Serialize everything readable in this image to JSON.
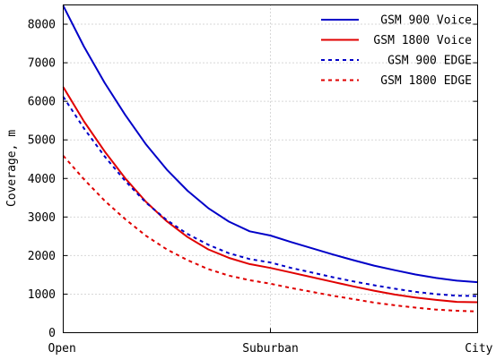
{
  "chart_data": {
    "type": "line",
    "xlabel": "",
    "ylabel": "Coverage, m",
    "categories": [
      "Open",
      "Suburban",
      "City"
    ],
    "xlim": [
      0,
      2
    ],
    "ylim": [
      0,
      8500
    ],
    "yticks": [
      0,
      1000,
      2000,
      3000,
      4000,
      5000,
      6000,
      7000,
      8000
    ],
    "grid": true,
    "legend_position": "top-right",
    "x": [
      0,
      0.1,
      0.2,
      0.3,
      0.4,
      0.5,
      0.6,
      0.7,
      0.8,
      0.9,
      1.0,
      1.1,
      1.2,
      1.3,
      1.4,
      1.5,
      1.6,
      1.7,
      1.8,
      1.9,
      2.0
    ],
    "series": [
      {
        "name": "GSM 900 Voice",
        "color": "#0000c8",
        "style": "solid",
        "values": [
          8480,
          7420,
          6480,
          5640,
          4880,
          4230,
          3680,
          3230,
          2880,
          2630,
          2520,
          2350,
          2190,
          2030,
          1880,
          1740,
          1620,
          1510,
          1420,
          1350,
          1310
        ]
      },
      {
        "name": "GSM 1800 Voice",
        "color": "#e00000",
        "style": "solid",
        "values": [
          6370,
          5480,
          4700,
          4000,
          3390,
          2890,
          2480,
          2160,
          1940,
          1780,
          1680,
          1560,
          1440,
          1320,
          1200,
          1090,
          990,
          910,
          850,
          800,
          790
        ]
      },
      {
        "name": "GSM 900 EDGE",
        "color": "#0000c8",
        "style": "dashed",
        "values": [
          6120,
          5300,
          4570,
          3930,
          3370,
          2920,
          2560,
          2280,
          2060,
          1910,
          1820,
          1680,
          1560,
          1440,
          1330,
          1230,
          1140,
          1060,
          1000,
          960,
          950
        ]
      },
      {
        "name": "GSM 1800 EDGE",
        "color": "#e00000",
        "style": "dashed",
        "values": [
          4590,
          3980,
          3420,
          2940,
          2510,
          2160,
          1880,
          1650,
          1480,
          1360,
          1270,
          1160,
          1060,
          960,
          870,
          780,
          710,
          650,
          600,
          570,
          550
        ]
      }
    ]
  }
}
